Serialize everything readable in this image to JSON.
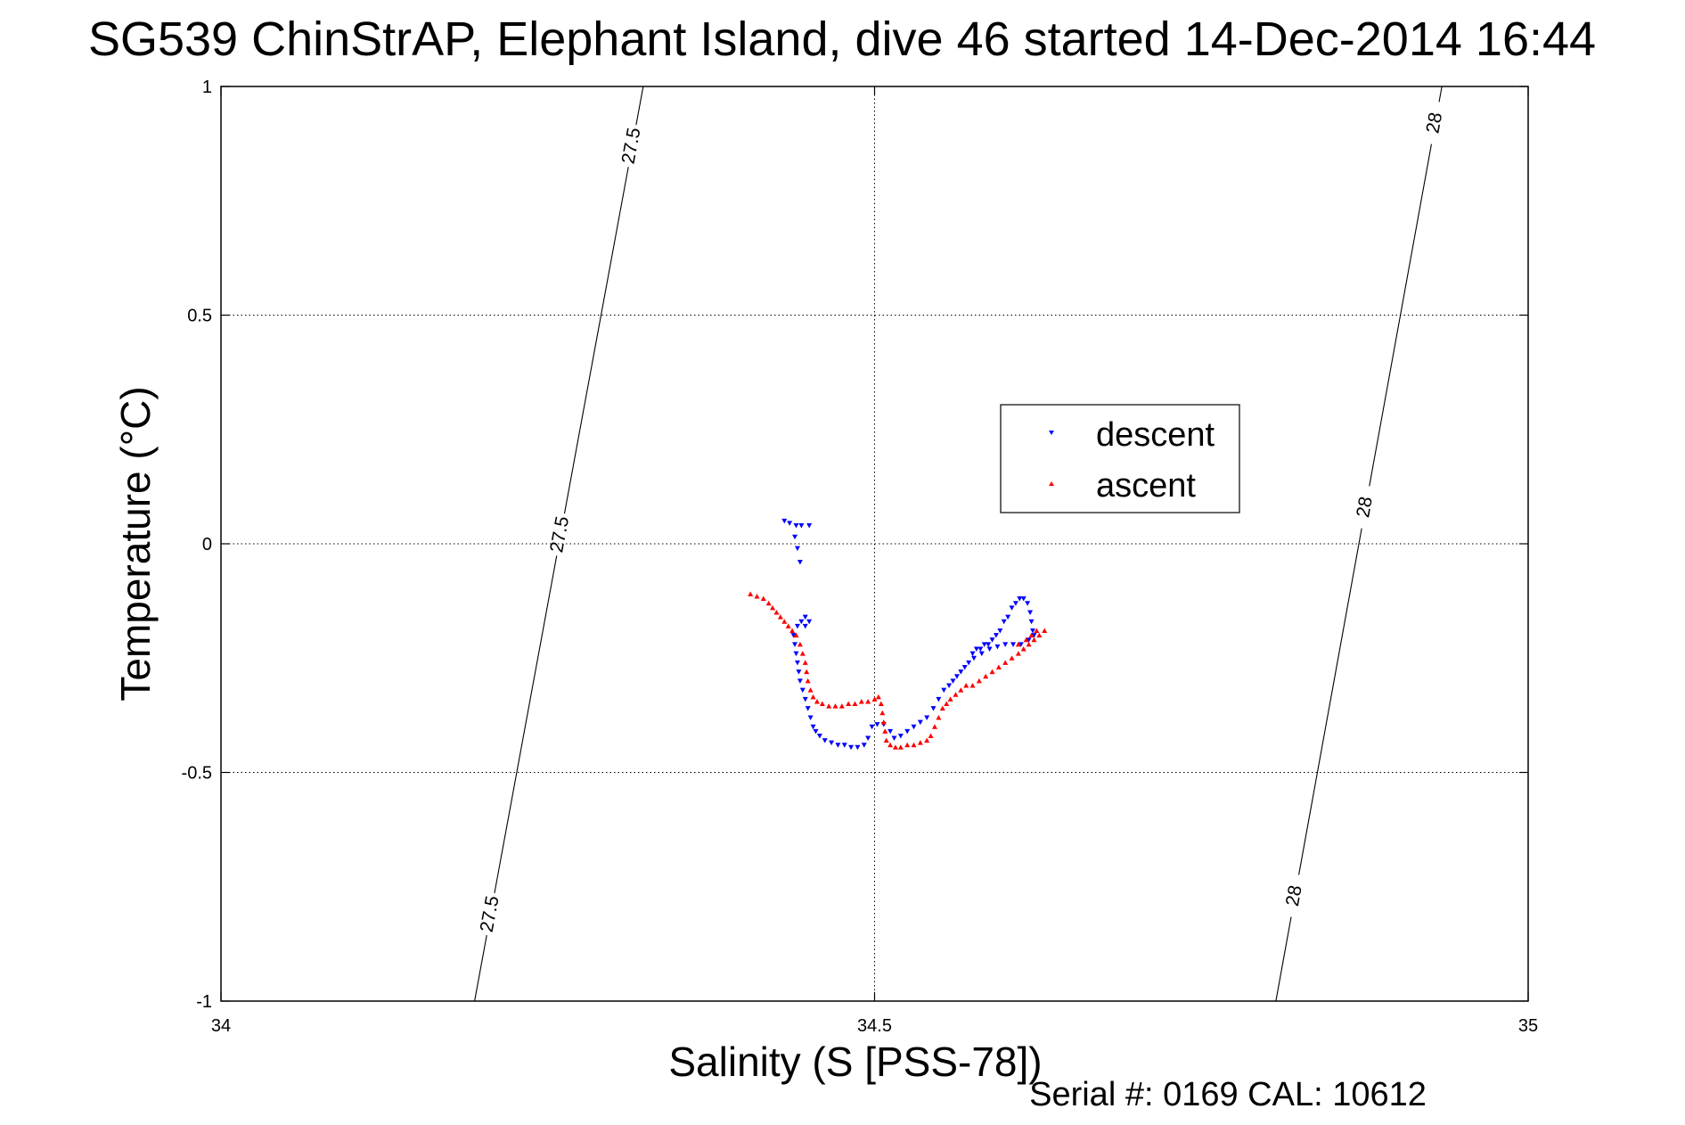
{
  "chart_data": {
    "type": "scatter",
    "title": "SG539 ChinStrAP, Elephant Island, dive 46 started 14-Dec-2014 16:44",
    "xlabel": "Salinity (S [PSS-78])",
    "ylabel": "Temperature (°C)",
    "xlim": [
      34,
      35
    ],
    "ylim": [
      -1,
      1
    ],
    "xticks": [
      "34",
      "34.5",
      "35"
    ],
    "yticks": [
      "-1",
      "-0.5",
      "0",
      "0.5",
      "1"
    ],
    "grid": true,
    "legend_position": "upper-right",
    "footer": "Serial #: 0169 CAL: 10612",
    "density_contours": [
      {
        "label": "27.5",
        "points": [
          [
            34.194,
            -1.0
          ],
          [
            34.323,
            1.0
          ]
        ],
        "label_y": [
          0.87,
          0.02,
          -0.81
        ]
      },
      {
        "label": "28",
        "points": [
          [
            34.807,
            -1.0
          ],
          [
            34.934,
            1.0
          ]
        ],
        "label_y": [
          0.92,
          0.08,
          -0.77
        ]
      }
    ],
    "series": [
      {
        "name": "descent",
        "color": "#0000ff",
        "marker": "triangle-down",
        "points": [
          [
            34.431,
            0.05
          ],
          [
            34.435,
            0.045
          ],
          [
            34.44,
            0.04
          ],
          [
            34.444,
            0.04
          ],
          [
            34.45,
            0.04
          ],
          [
            34.439,
            0.015
          ],
          [
            34.441,
            -0.01
          ],
          [
            34.443,
            -0.04
          ],
          [
            34.447,
            -0.16
          ],
          [
            34.45,
            -0.17
          ],
          [
            34.441,
            -0.18
          ],
          [
            34.444,
            -0.17
          ],
          [
            34.447,
            -0.18
          ],
          [
            34.438,
            -0.2
          ],
          [
            34.439,
            -0.22
          ],
          [
            34.44,
            -0.24
          ],
          [
            34.441,
            -0.26
          ],
          [
            34.442,
            -0.28
          ],
          [
            34.443,
            -0.3
          ],
          [
            34.445,
            -0.32
          ],
          [
            34.447,
            -0.34
          ],
          [
            34.449,
            -0.36
          ],
          [
            34.451,
            -0.38
          ],
          [
            34.453,
            -0.4
          ],
          [
            34.455,
            -0.41
          ],
          [
            34.458,
            -0.42
          ],
          [
            34.462,
            -0.43
          ],
          [
            34.467,
            -0.435
          ],
          [
            34.472,
            -0.44
          ],
          [
            34.477,
            -0.44
          ],
          [
            34.482,
            -0.445
          ],
          [
            34.487,
            -0.445
          ],
          [
            34.492,
            -0.44
          ],
          [
            34.495,
            -0.425
          ],
          [
            34.498,
            -0.4
          ],
          [
            34.502,
            -0.395
          ],
          [
            34.507,
            -0.395
          ],
          [
            34.512,
            -0.41
          ],
          [
            34.515,
            -0.425
          ],
          [
            34.52,
            -0.42
          ],
          [
            34.525,
            -0.41
          ],
          [
            34.53,
            -0.4
          ],
          [
            34.535,
            -0.39
          ],
          [
            34.54,
            -0.38
          ],
          [
            34.545,
            -0.36
          ],
          [
            34.549,
            -0.34
          ],
          [
            34.553,
            -0.32
          ],
          [
            34.557,
            -0.31
          ],
          [
            34.56,
            -0.3
          ],
          [
            34.563,
            -0.29
          ],
          [
            34.566,
            -0.28
          ],
          [
            34.569,
            -0.27
          ],
          [
            34.572,
            -0.26
          ],
          [
            34.575,
            -0.24
          ],
          [
            34.578,
            -0.23
          ],
          [
            34.581,
            -0.23
          ],
          [
            34.584,
            -0.22
          ],
          [
            34.587,
            -0.22
          ],
          [
            34.59,
            -0.21
          ],
          [
            34.593,
            -0.2
          ],
          [
            34.596,
            -0.19
          ],
          [
            34.599,
            -0.17
          ],
          [
            34.602,
            -0.16
          ],
          [
            34.605,
            -0.14
          ],
          [
            34.608,
            -0.13
          ],
          [
            34.611,
            -0.12
          ],
          [
            34.614,
            -0.12
          ],
          [
            34.617,
            -0.13
          ],
          [
            34.619,
            -0.15
          ],
          [
            34.62,
            -0.17
          ],
          [
            34.621,
            -0.19
          ],
          [
            34.622,
            -0.2
          ],
          [
            34.618,
            -0.21
          ],
          [
            34.612,
            -0.22
          ],
          [
            34.606,
            -0.22
          ],
          [
            34.6,
            -0.22
          ],
          [
            34.594,
            -0.225
          ],
          [
            34.588,
            -0.23
          ],
          [
            34.582,
            -0.24
          ],
          [
            34.576,
            -0.25
          ]
        ]
      },
      {
        "name": "ascent",
        "color": "#ff0000",
        "marker": "triangle-up",
        "points": [
          [
            34.405,
            -0.11
          ],
          [
            34.41,
            -0.115
          ],
          [
            34.415,
            -0.12
          ],
          [
            34.419,
            -0.13
          ],
          [
            34.422,
            -0.14
          ],
          [
            34.425,
            -0.15
          ],
          [
            34.428,
            -0.16
          ],
          [
            34.431,
            -0.17
          ],
          [
            34.434,
            -0.18
          ],
          [
            34.437,
            -0.19
          ],
          [
            34.44,
            -0.2
          ],
          [
            34.443,
            -0.22
          ],
          [
            34.445,
            -0.24
          ],
          [
            34.447,
            -0.26
          ],
          [
            34.448,
            -0.28
          ],
          [
            34.449,
            -0.3
          ],
          [
            34.451,
            -0.32
          ],
          [
            34.453,
            -0.335
          ],
          [
            34.456,
            -0.345
          ],
          [
            34.46,
            -0.35
          ],
          [
            34.465,
            -0.355
          ],
          [
            34.47,
            -0.355
          ],
          [
            34.475,
            -0.355
          ],
          [
            34.48,
            -0.35
          ],
          [
            34.485,
            -0.35
          ],
          [
            34.49,
            -0.345
          ],
          [
            34.495,
            -0.345
          ],
          [
            34.5,
            -0.34
          ],
          [
            34.503,
            -0.335
          ],
          [
            34.505,
            -0.35
          ],
          [
            34.506,
            -0.37
          ],
          [
            34.507,
            -0.39
          ],
          [
            34.508,
            -0.41
          ],
          [
            34.509,
            -0.43
          ],
          [
            34.512,
            -0.44
          ],
          [
            34.516,
            -0.445
          ],
          [
            34.52,
            -0.445
          ],
          [
            34.525,
            -0.44
          ],
          [
            34.53,
            -0.44
          ],
          [
            34.535,
            -0.435
          ],
          [
            34.54,
            -0.43
          ],
          [
            34.543,
            -0.42
          ],
          [
            34.546,
            -0.4
          ],
          [
            34.549,
            -0.38
          ],
          [
            34.552,
            -0.36
          ],
          [
            34.555,
            -0.35
          ],
          [
            34.558,
            -0.34
          ],
          [
            34.562,
            -0.33
          ],
          [
            34.566,
            -0.32
          ],
          [
            34.57,
            -0.31
          ],
          [
            34.575,
            -0.31
          ],
          [
            34.58,
            -0.3
          ],
          [
            34.585,
            -0.29
          ],
          [
            34.59,
            -0.28
          ],
          [
            34.595,
            -0.27
          ],
          [
            34.6,
            -0.26
          ],
          [
            34.605,
            -0.25
          ],
          [
            34.61,
            -0.24
          ],
          [
            34.614,
            -0.23
          ],
          [
            34.618,
            -0.22
          ],
          [
            34.622,
            -0.21
          ],
          [
            34.626,
            -0.2
          ],
          [
            34.63,
            -0.19
          ],
          [
            34.61,
            -0.22
          ],
          [
            34.616,
            -0.21
          ],
          [
            34.62,
            -0.2
          ],
          [
            34.624,
            -0.19
          ]
        ]
      }
    ]
  }
}
